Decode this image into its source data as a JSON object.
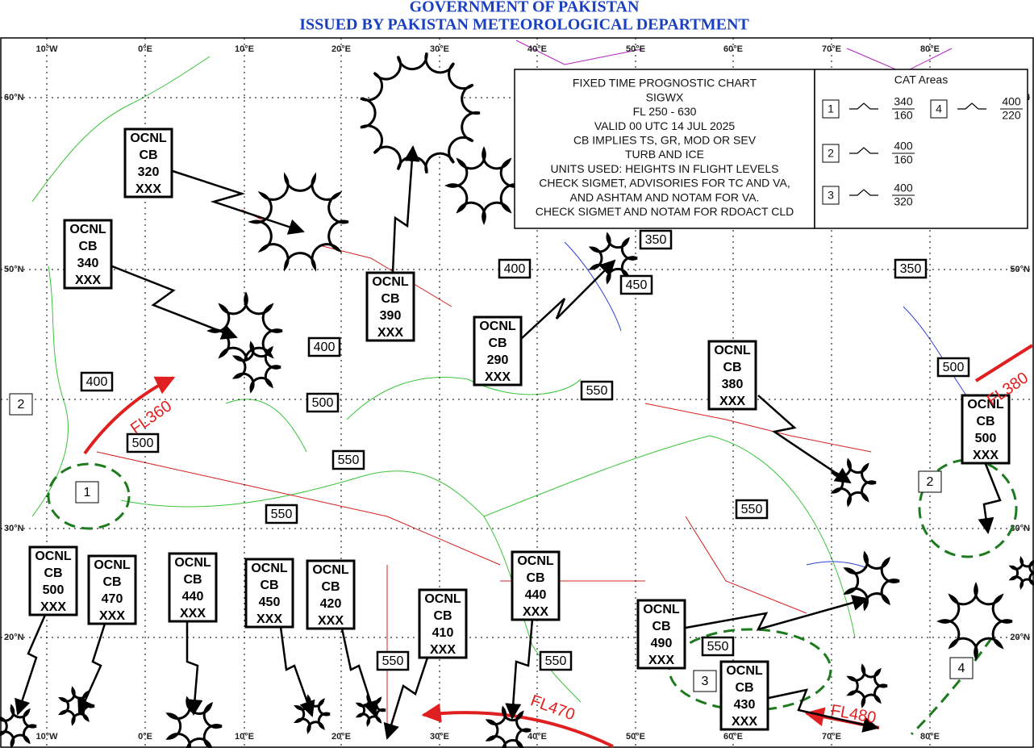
{
  "header": {
    "line1": "GOVERNMENT OF PAKISTAN",
    "line2": "ISSUED BY PAKISTAN METEOROLOGICAL DEPARTMENT"
  },
  "map": {
    "longitudes": [
      "10°W",
      "0°E",
      "10°E",
      "20°E",
      "30°E",
      "40°E",
      "50°E",
      "60°E",
      "70°E",
      "80°E"
    ],
    "latitudes": [
      "60°N",
      "50°N",
      "30°N",
      "20°N"
    ]
  },
  "legend": {
    "lines": [
      "FIXED TIME PROGNOSTIC CHART",
      "SIGWX",
      "FL 250 - 630",
      "VALID 00 UTC 14 JUL 2025",
      "CB IMPLIES TS, GR, MOD OR SEV",
      "TURB AND ICE",
      "UNITS USED: HEIGHTS IN FLIGHT LEVELS",
      "CHECK SIGMET, ADVISORIES FOR TC AND VA,",
      "AND ASHTAM AND NOTAM FOR VA.",
      "CHECK SIGMET AND NOTAM FOR RDOACT CLD"
    ],
    "cat_title": "CAT Areas",
    "cat_areas": [
      {
        "id": 1,
        "top": 340,
        "base": 160
      },
      {
        "id": 2,
        "top": 400,
        "base": 160
      },
      {
        "id": 3,
        "top": 400,
        "base": 320
      },
      {
        "id": 4,
        "top": 400,
        "base": 220
      }
    ]
  },
  "cb_areas": [
    {
      "coverage": "OCNL",
      "type": "CB",
      "top": 320,
      "base": "XXX"
    },
    {
      "coverage": "OCNL",
      "type": "CB",
      "top": 340,
      "base": "XXX"
    },
    {
      "coverage": "OCNL",
      "type": "CB",
      "top": 390,
      "base": "XXX"
    },
    {
      "coverage": "OCNL",
      "type": "CB",
      "top": 290,
      "base": "XXX"
    },
    {
      "coverage": "OCNL",
      "type": "CB",
      "top": 380,
      "base": "XXX"
    },
    {
      "coverage": "OCNL",
      "type": "CB",
      "top": 500,
      "base": "XXX"
    },
    {
      "coverage": "OCNL",
      "type": "CB",
      "top": 500,
      "base": "XXX"
    },
    {
      "coverage": "OCNL",
      "type": "CB",
      "top": 470,
      "base": "XXX"
    },
    {
      "coverage": "OCNL",
      "type": "CB",
      "top": 440,
      "base": "XXX"
    },
    {
      "coverage": "OCNL",
      "type": "CB",
      "top": 450,
      "base": "XXX"
    },
    {
      "coverage": "OCNL",
      "type": "CB",
      "top": 420,
      "base": "XXX"
    },
    {
      "coverage": "OCNL",
      "type": "CB",
      "top": 410,
      "base": "XXX"
    },
    {
      "coverage": "OCNL",
      "type": "CB",
      "top": 440,
      "base": "XXX"
    },
    {
      "coverage": "OCNL",
      "type": "CB",
      "top": 490,
      "base": "XXX"
    },
    {
      "coverage": "OCNL",
      "type": "CB",
      "top": 430,
      "base": "XXX"
    }
  ],
  "tropopause_heights": [
    350,
    400,
    450,
    350,
    400,
    400,
    500,
    550,
    500,
    500,
    550,
    550,
    550,
    550,
    550,
    550
  ],
  "cat_markers": [
    2,
    1,
    2,
    3,
    4
  ],
  "jet_streams": [
    "FL360",
    "FL380",
    "FL470",
    "FL480"
  ]
}
